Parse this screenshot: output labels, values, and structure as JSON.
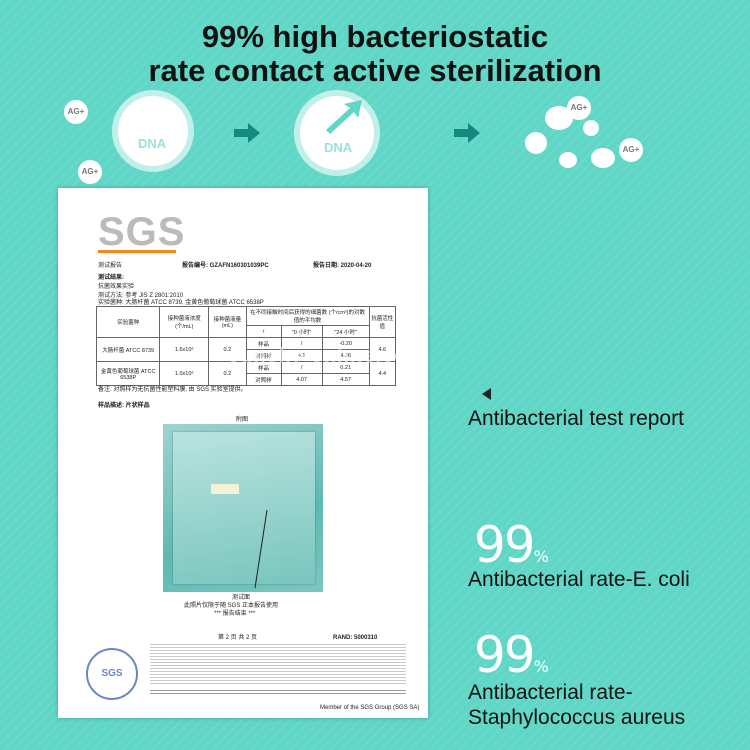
{
  "headline": {
    "line1": "99% high bacteriostatic",
    "line2": "rate contact active sterilization"
  },
  "illustration": {
    "dna_label": "DNA",
    "ion_label": "AG+",
    "arrow_color": "#16897e"
  },
  "report": {
    "logo": "SGS",
    "header_left": "测试报告",
    "report_no": "报告编号: GZAFN160301039PC",
    "report_date": "报告日期: 2020-04-20",
    "results_title": "测试结果:",
    "test_item": "抗菌效果实验",
    "method": "测试方法: 参考 JIS Z 2801:2010",
    "strains": "实验菌种: 大肠杆菌 ATCC 8739, 金黄色葡萄球菌 ATCC 6538P",
    "table": {
      "col_strain": "实验菌种",
      "col_conc": "接种菌液浓度 (个/mL)",
      "col_vol": "接种菌液量 (mL)",
      "col_counts": "在不同接触时间后获得的细菌数 (个/cm²)的对数值的平均数",
      "col_rate": "抗菌活性值",
      "t0": "\"0 小时\"",
      "t24": "\"24 小时\"",
      "rows": [
        {
          "strain": "大肠杆菌 ATCC 8739",
          "conc": "1.6x10⁶",
          "vol": "0.2",
          "sample": "样品",
          "v0": "/",
          "v24": "-0.20",
          "control": "对照样",
          "c0": "4.1",
          "c24": "4.36",
          "rate": "4.6"
        },
        {
          "strain": "金黄色葡萄球菌 ATCC 6538P",
          "conc": "1.0x10⁶",
          "vol": "0.2",
          "sample": "样品",
          "v0": "/",
          "v24": "0.21",
          "control": "对照样",
          "c0": "4.07",
          "c24": "4.57",
          "rate": "4.4"
        }
      ]
    },
    "note": "备注: 对照样为无抗菌性能塑料膜, 由 SGS 实验室提供。",
    "sample_info": "样品描述: 片状样品",
    "photo_caption_top": "附图",
    "photo_caption": "测试面",
    "photo_note": "此照片仅限于随 SGS 正本报告使用",
    "end_note": "*** 报告结束 ***",
    "page": "第 2 页 共 2 页",
    "rand": "RAND: 5000310",
    "footer_member": "Member of the SGS Group (SGS SA)",
    "stamp": "SGS"
  },
  "watermark": "sunsky-online.com",
  "claims": {
    "report_label": "Antibacterial test report",
    "ecoli_value": "99",
    "ecoli_unit": "%",
    "ecoli_label": "Antibacterial rate-E. coli",
    "staph_value": "99",
    "staph_unit": "%",
    "staph_label_line1": "Antibacterial rate-",
    "staph_label_line2": "Staphylococcus aureus"
  }
}
